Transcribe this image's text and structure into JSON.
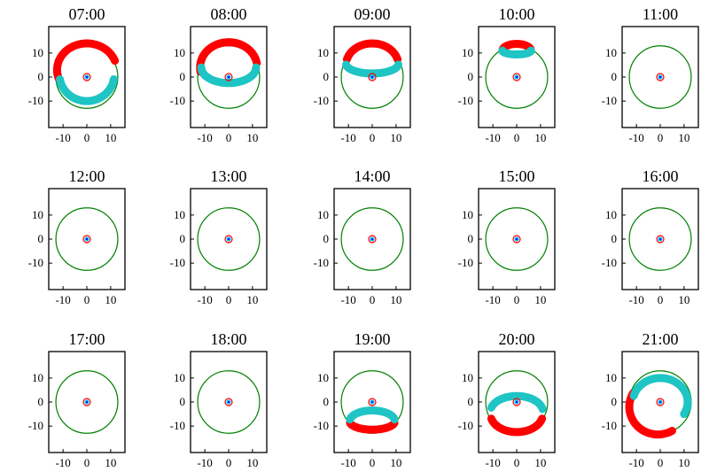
{
  "chart_data": {
    "type": "scatter",
    "description_units": "plot coordinates in data units",
    "xlim": [
      -16,
      16
    ],
    "ylim": [
      -21,
      21
    ],
    "x_ticks": [
      -10,
      0,
      10
    ],
    "y_ticks": [
      10,
      0,
      -10
    ],
    "x_tick_labels": [
      "-10",
      "0",
      "10"
    ],
    "y_tick_labels": [
      "10",
      "0",
      "-10"
    ],
    "reference_circle": {
      "cx": 0,
      "cy": 0,
      "r": 13,
      "color": "#008000"
    },
    "center_marker": {
      "x": 0,
      "y": 0,
      "colors": [
        "#ff0000",
        "#00bfff",
        "#0000ff"
      ]
    },
    "series_colors": {
      "red": "#ff0000",
      "cyan": "#1fc4c4"
    },
    "panels": [
      {
        "title": "07:00",
        "red_arc": {
          "cx": 0,
          "cy": 3,
          "rx": 12.5,
          "ry": 11,
          "start": 20,
          "end": 200
        },
        "cyan_arc": {
          "cx": 0,
          "cy": 1,
          "rx": 11.5,
          "ry": 11,
          "start": 190,
          "end": 350
        }
      },
      {
        "title": "08:00",
        "red_arc": {
          "cx": 0,
          "cy": 4,
          "rx": 12,
          "ry": 10.5,
          "start": 10,
          "end": 190
        },
        "cyan_arc": {
          "cx": 0,
          "cy": 4,
          "rx": 11.5,
          "ry": 6.5,
          "start": 180,
          "end": 360
        }
      },
      {
        "title": "09:00",
        "red_arc": {
          "cx": 0,
          "cy": 5,
          "rx": 11,
          "ry": 9,
          "start": 15,
          "end": 165
        },
        "cyan_arc": {
          "cx": 0,
          "cy": 5.5,
          "rx": 11,
          "ry": 4,
          "start": 185,
          "end": 355
        }
      },
      {
        "title": "10:00",
        "red_arc": {
          "cx": 0,
          "cy": 11,
          "rx": 6,
          "ry": 2.8,
          "start": 0,
          "end": 180
        },
        "cyan_arc": {
          "cx": 0,
          "cy": 11,
          "rx": 6,
          "ry": 1.6,
          "start": 180,
          "end": 360
        }
      },
      {
        "title": "11:00",
        "red_arc": null,
        "cyan_arc": null
      },
      {
        "title": "12:00",
        "red_arc": null,
        "cyan_arc": null
      },
      {
        "title": "13:00",
        "red_arc": null,
        "cyan_arc": null
      },
      {
        "title": "14:00",
        "red_arc": null,
        "cyan_arc": null
      },
      {
        "title": "15:00",
        "red_arc": null,
        "cyan_arc": null
      },
      {
        "title": "16:00",
        "red_arc": null,
        "cyan_arc": null
      },
      {
        "title": "17:00",
        "red_arc": null,
        "cyan_arc": null
      },
      {
        "title": "18:00",
        "red_arc": null,
        "cyan_arc": null
      },
      {
        "title": "19:00",
        "red_arc": {
          "cx": 0,
          "cy": -8,
          "rx": 9.5,
          "ry": 3.5,
          "start": 190,
          "end": 350
        },
        "cyan_arc": {
          "cx": 0,
          "cy": -8,
          "rx": 9.5,
          "ry": 4.5,
          "start": 10,
          "end": 170
        }
      },
      {
        "title": "20:00",
        "red_arc": {
          "cx": 0,
          "cy": -5,
          "rx": 11,
          "ry": 7.5,
          "start": 195,
          "end": 345
        },
        "cyan_arc": {
          "cx": 0,
          "cy": -4,
          "rx": 11,
          "ry": 6.5,
          "start": 10,
          "end": 165
        }
      },
      {
        "title": "21:00",
        "red_arc": {
          "cx": -1,
          "cy": -2,
          "rx": 12,
          "ry": 11.5,
          "start": 150,
          "end": 300
        },
        "cyan_arc": {
          "cx": 0,
          "cy": 0,
          "rx": 11.5,
          "ry": 10,
          "start": -30,
          "end": 165
        }
      }
    ]
  }
}
